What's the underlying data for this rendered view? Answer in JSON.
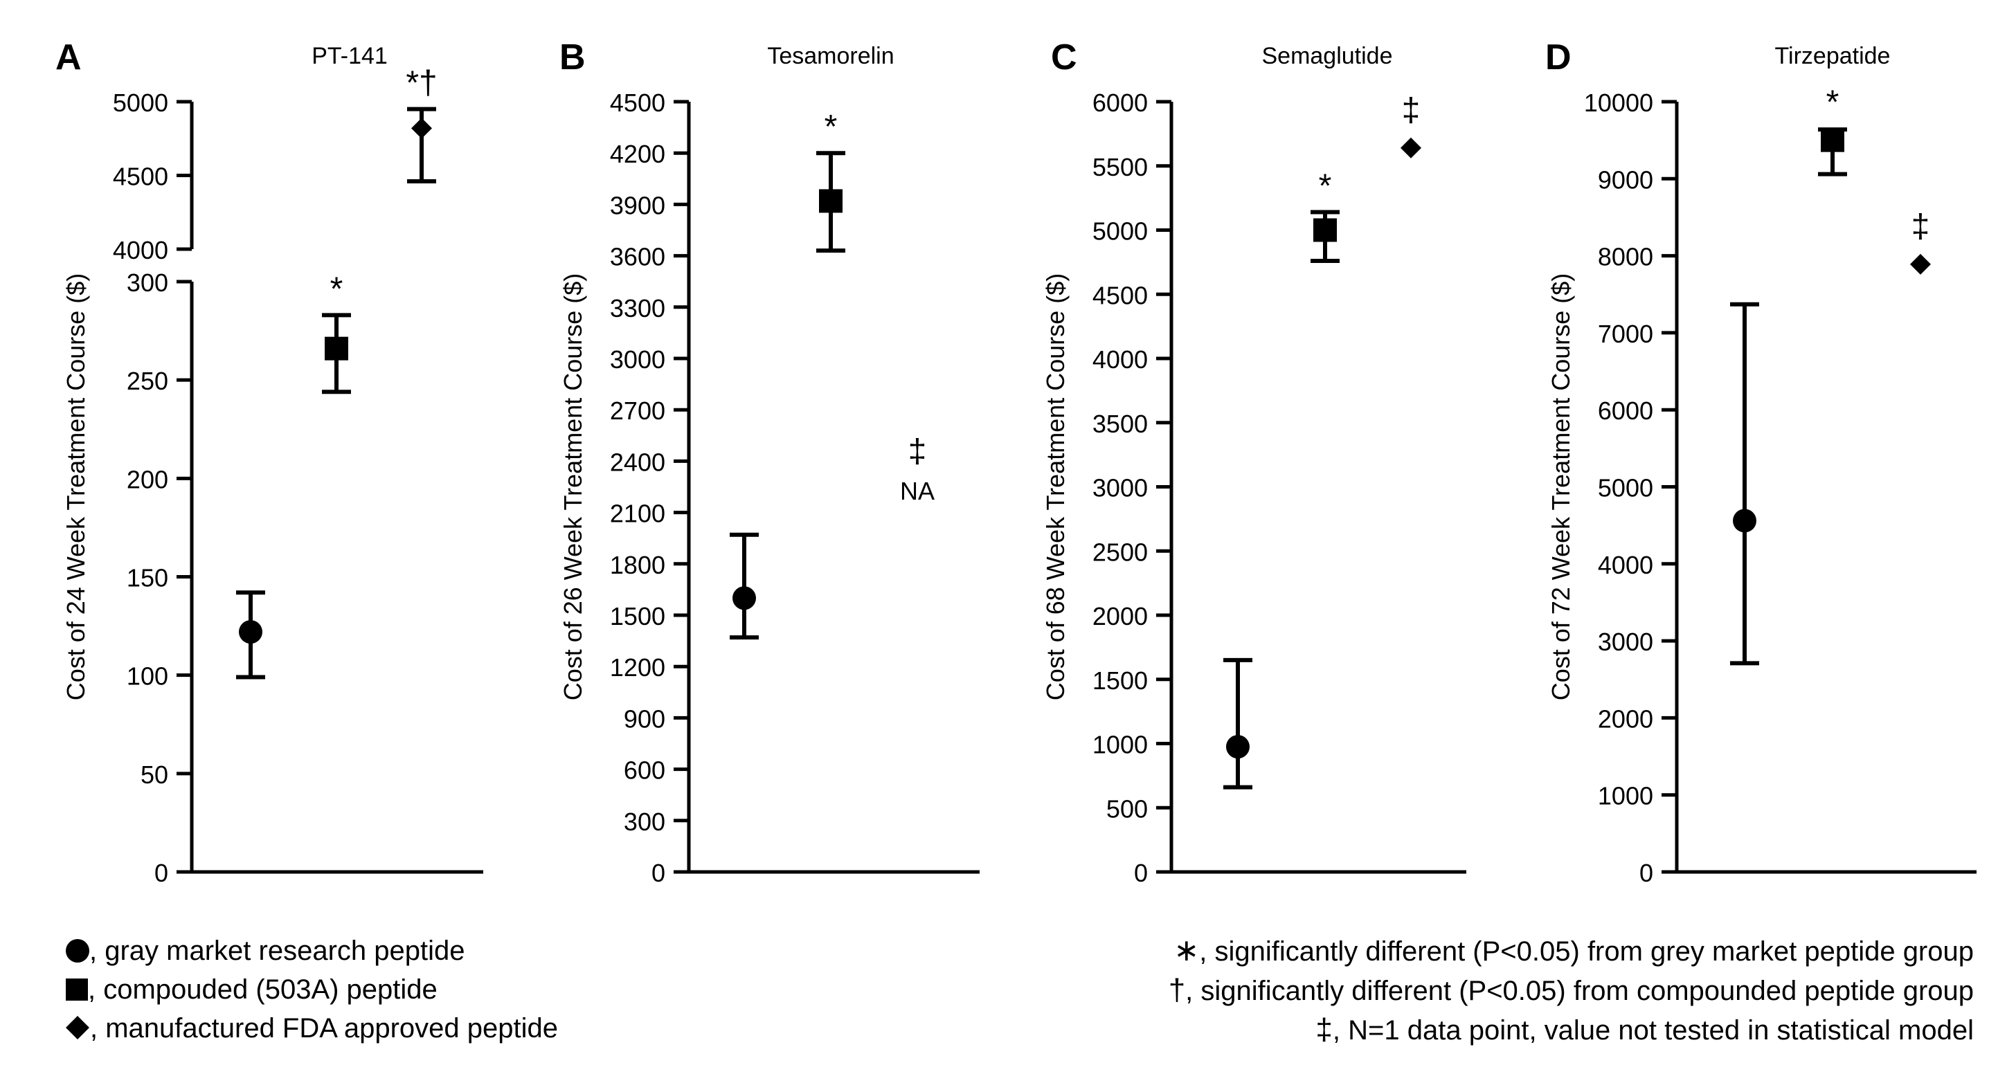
{
  "chart_data": [
    {
      "type": "scatter",
      "panel": "A",
      "title": "PT-141",
      "ylabel": "Cost of 24 Week Treatment Course ($)",
      "ylim_lower": [
        0,
        300
      ],
      "ylim_upper": [
        4000,
        5000
      ],
      "yticks_lower": [
        "0",
        "50",
        "100",
        "150",
        "200",
        "250",
        "300"
      ],
      "yticks_upper": [
        "4000",
        "4500",
        "5000"
      ],
      "points": [
        {
          "group": "gray market research peptide",
          "marker": "circle",
          "value": 122,
          "low": 99,
          "high": 142,
          "annotation": ""
        },
        {
          "group": "compouded (503A) peptide",
          "marker": "square",
          "value": 266,
          "low": 244,
          "high": 283,
          "annotation": "*"
        },
        {
          "group": "manufactured FDA approved peptide",
          "marker": "diamond",
          "value": 4820,
          "low": 4460,
          "high": 4950,
          "annotation": "*†"
        }
      ]
    },
    {
      "type": "scatter",
      "panel": "B",
      "title": "Tesamorelin",
      "ylabel": "Cost of 26 Week Treatment Course ($)",
      "ylim": [
        0,
        4500
      ],
      "yticks": [
        "0",
        "300",
        "600",
        "900",
        "1200",
        "1500",
        "1800",
        "2100",
        "2400",
        "2700",
        "3000",
        "3300",
        "3600",
        "3900",
        "4200",
        "4500"
      ],
      "points": [
        {
          "group": "gray market research peptide",
          "marker": "circle",
          "value": 1600,
          "low": 1370,
          "high": 1970,
          "annotation": ""
        },
        {
          "group": "compouded (503A) peptide",
          "marker": "square",
          "value": 3920,
          "low": 3630,
          "high": 4200,
          "annotation": "*"
        },
        {
          "group": "manufactured FDA approved peptide",
          "marker": "none",
          "value": null,
          "annotation": "‡",
          "na_label": "NA"
        }
      ]
    },
    {
      "type": "scatter",
      "panel": "C",
      "title": "Semaglutide",
      "ylabel": "Cost of 68 Week Treatment Course ($)",
      "ylim": [
        0,
        6000
      ],
      "yticks": [
        "0",
        "500",
        "1000",
        "1500",
        "2000",
        "2500",
        "3000",
        "3500",
        "4000",
        "4500",
        "5000",
        "5500",
        "6000"
      ],
      "points": [
        {
          "group": "gray market research peptide",
          "marker": "circle",
          "value": 975,
          "low": 660,
          "high": 1650,
          "annotation": ""
        },
        {
          "group": "compouded (503A) peptide",
          "marker": "square",
          "value": 5000,
          "low": 4760,
          "high": 5140,
          "annotation": "*"
        },
        {
          "group": "manufactured FDA approved peptide",
          "marker": "diamond",
          "value": 5640,
          "low": null,
          "high": null,
          "annotation": "‡"
        }
      ]
    },
    {
      "type": "scatter",
      "panel": "D",
      "title": "Tirzepatide",
      "ylabel": "Cost of 72 Week Treatment Course ($)",
      "ylim": [
        0,
        10000
      ],
      "yticks": [
        "0",
        "1000",
        "2000",
        "3000",
        "4000",
        "5000",
        "6000",
        "7000",
        "8000",
        "9000",
        "10000"
      ],
      "points": [
        {
          "group": "gray market research peptide",
          "marker": "circle",
          "value": 4560,
          "low": 2710,
          "high": 7370,
          "annotation": ""
        },
        {
          "group": "compouded (503A) peptide",
          "marker": "square",
          "value": 9500,
          "low": 9060,
          "high": 9640,
          "annotation": "*"
        },
        {
          "group": "manufactured FDA approved peptide",
          "marker": "diamond",
          "value": 7890,
          "low": null,
          "high": null,
          "annotation": "‡"
        }
      ]
    }
  ],
  "legend": {
    "markers": [
      {
        "symbol": "circle",
        "text": ", gray market research peptide"
      },
      {
        "symbol": "square",
        "text": ", compouded (503A) peptide"
      },
      {
        "symbol": "diamond",
        "text": ", manufactured FDA approved peptide"
      }
    ],
    "significance": [
      {
        "symbol": "∗",
        "text": ", significantly different (P<0.05) from grey market peptide group"
      },
      {
        "symbol": "†",
        "text": ", significantly different (P<0.05) from compounded peptide group"
      },
      {
        "symbol": "‡",
        "text": ", N=1 data point, value not tested in statistical model"
      }
    ]
  }
}
